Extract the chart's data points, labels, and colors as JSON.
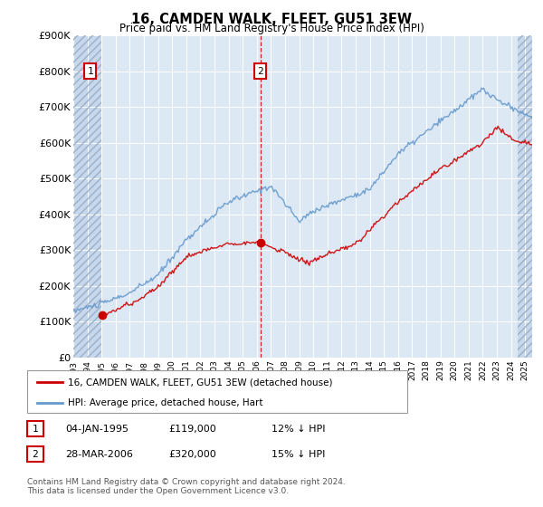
{
  "title": "16, CAMDEN WALK, FLEET, GU51 3EW",
  "subtitle": "Price paid vs. HM Land Registry's House Price Index (HPI)",
  "legend_line1": "16, CAMDEN WALK, FLEET, GU51 3EW (detached house)",
  "legend_line2": "HPI: Average price, detached house, Hart",
  "annotation1": {
    "number": "1",
    "date": "04-JAN-1995",
    "price": "£119,000",
    "note": "12% ↓ HPI"
  },
  "annotation2": {
    "number": "2",
    "date": "28-MAR-2006",
    "price": "£320,000",
    "note": "15% ↓ HPI"
  },
  "footer": "Contains HM Land Registry data © Crown copyright and database right 2024.\nThis data is licensed under the Open Government Licence v3.0.",
  "plot_bg": "#dce8f4",
  "hatch_bg": "#c8d8ec",
  "grid_color": "#ffffff",
  "red_line_color": "#cc0000",
  "blue_line_color": "#6699cc",
  "marker1_x": 1995.04,
  "marker1_y": 119000,
  "marker2_x": 2006.25,
  "marker2_y": 320000,
  "xmin": 1993,
  "xmax": 2025.5,
  "ymin": 0,
  "ymax": 900000,
  "yticks": [
    0,
    100000,
    200000,
    300000,
    400000,
    500000,
    600000,
    700000,
    800000,
    900000
  ],
  "ytick_labels": [
    "£0",
    "£100K",
    "£200K",
    "£300K",
    "£400K",
    "£500K",
    "£600K",
    "£700K",
    "£800K",
    "£900K"
  ],
  "hatch_left_end": 1995.0,
  "hatch_right_start": 2024.5
}
